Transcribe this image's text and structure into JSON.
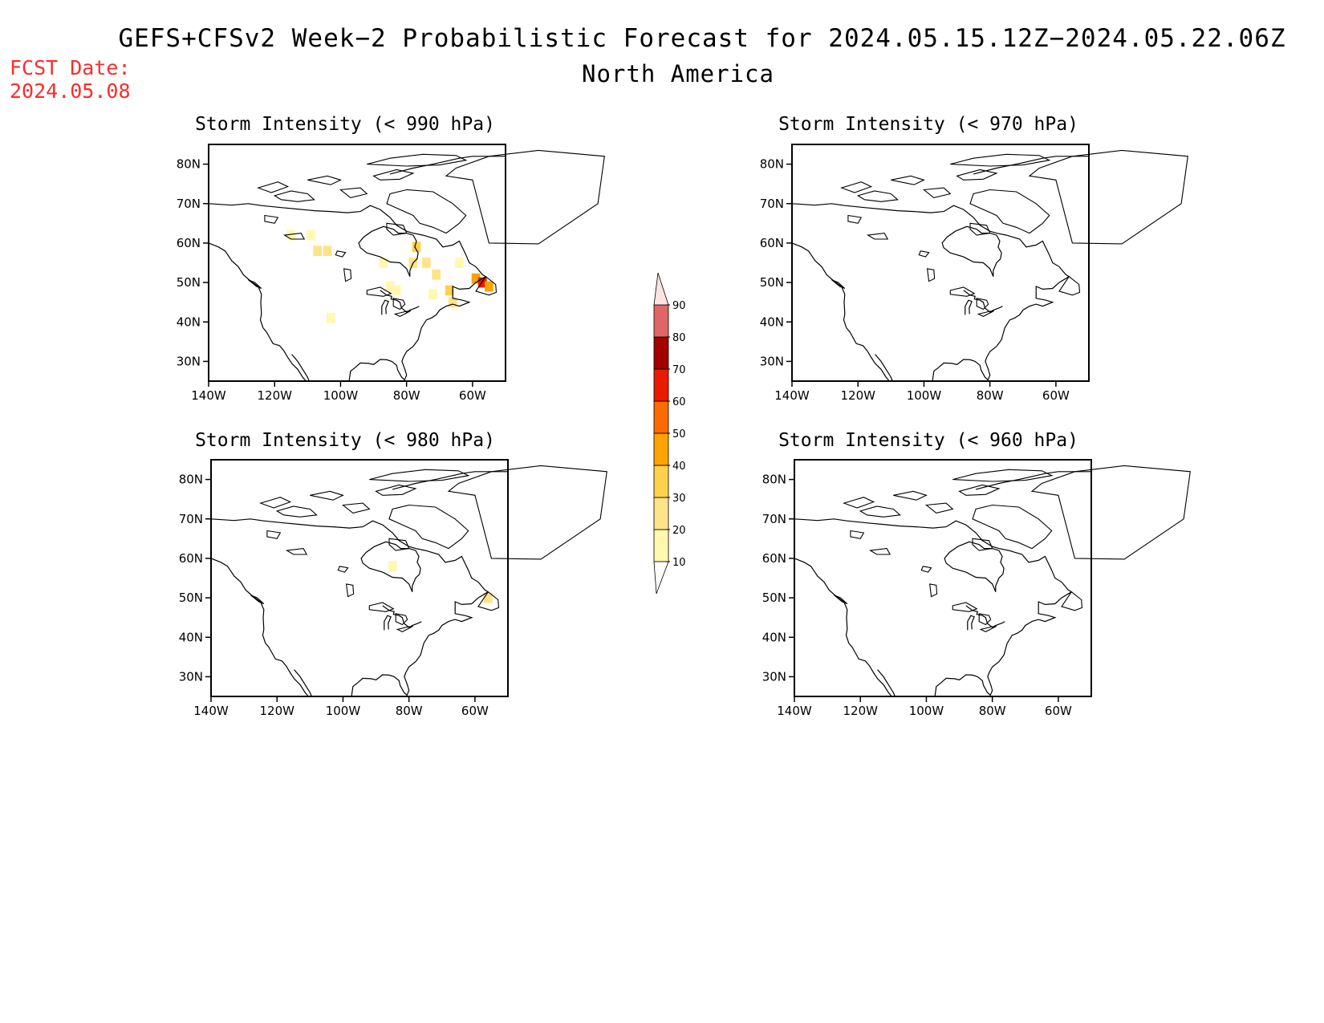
{
  "header": {
    "title_line1": "GEFS+CFSv2 Week−2 Probabilistic Forecast for 2024.05.15.12Z−2024.05.22.06Z",
    "title_line2": "North America"
  },
  "forecast_date": {
    "label": "FCST Date:",
    "value": "2024.05.08"
  },
  "axes": {
    "lat_labels": [
      "80N",
      "70N",
      "60N",
      "50N",
      "40N",
      "30N"
    ],
    "lon_labels": [
      "140W",
      "120W",
      "100W",
      "80W",
      "60W"
    ]
  },
  "panels": [
    {
      "id": "p990",
      "title": "Storm Intensity (< 990 hPa)",
      "cells": [
        {
          "lon": -115,
          "lat": 62,
          "value": 15
        },
        {
          "lon": -109,
          "lat": 62,
          "value": 12
        },
        {
          "lon": -107,
          "lat": 58,
          "value": 20
        },
        {
          "lon": -104,
          "lat": 58,
          "value": 25
        },
        {
          "lon": -103,
          "lat": 41,
          "value": 15
        },
        {
          "lon": -87,
          "lat": 55,
          "value": 15
        },
        {
          "lon": -85,
          "lat": 49,
          "value": 12
        },
        {
          "lon": -83,
          "lat": 48,
          "value": 15
        },
        {
          "lon": -78,
          "lat": 55,
          "value": 20
        },
        {
          "lon": -74,
          "lat": 55,
          "value": 25
        },
        {
          "lon": -71,
          "lat": 52,
          "value": 20
        },
        {
          "lon": -72,
          "lat": 47,
          "value": 15
        },
        {
          "lon": -67,
          "lat": 48,
          "value": 35
        },
        {
          "lon": -59,
          "lat": 51,
          "value": 45
        },
        {
          "lon": -57,
          "lat": 50,
          "value": 65
        },
        {
          "lon": -55,
          "lat": 49,
          "value": 40
        },
        {
          "lon": -64,
          "lat": 55,
          "value": 12
        },
        {
          "lon": -77,
          "lat": 59,
          "value": 30
        },
        {
          "lon": -66,
          "lat": 45,
          "value": 25
        }
      ]
    },
    {
      "id": "p970",
      "title": "Storm Intensity (< 970 hPa)",
      "cells": []
    },
    {
      "id": "p980",
      "title": "Storm Intensity (< 980 hPa)",
      "cells": [
        {
          "lon": -56,
          "lat": 50,
          "value": 25
        },
        {
          "lon": -85,
          "lat": 58,
          "value": 10
        }
      ]
    },
    {
      "id": "p960",
      "title": "Storm Intensity (< 960 hPa)",
      "cells": []
    }
  ],
  "colorbar": {
    "labels": [
      "10",
      "20",
      "30",
      "40",
      "50",
      "60",
      "70",
      "80",
      "90"
    ],
    "colors": [
      "#fff8b0",
      "#fee389",
      "#fed14d",
      "#fca300",
      "#fd6b00",
      "#ea1c00",
      "#a40000",
      "#e06666",
      "#f4a3a3",
      "#fde2e2"
    ]
  }
}
